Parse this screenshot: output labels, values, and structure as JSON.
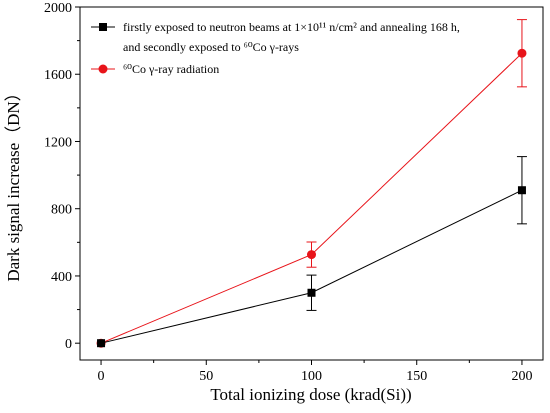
{
  "chart_data": {
    "type": "line",
    "title": "",
    "xlabel": "Total ionizing dose (krad(Si))",
    "ylabel": "Dark signal increase（DN）",
    "xlim": [
      -10,
      210
    ],
    "ylim": [
      -100,
      2000
    ],
    "xticks": [
      0,
      50,
      100,
      150,
      200
    ],
    "yticks": [
      0,
      400,
      800,
      1200,
      1600,
      2000
    ],
    "grid": false,
    "legend_position": "top-left",
    "series": [
      {
        "legend_line1": "firstly exposed to neutron beams at 1×10¹¹ n/cm²  and  annealing 168 h,",
        "legend_line2": "and secondly exposed to ⁶⁰Co γ-rays",
        "color": "#000000",
        "marker": "square",
        "x": [
          0,
          100,
          200
        ],
        "y": [
          0,
          300,
          910
        ],
        "error": [
          0,
          105,
          200
        ]
      },
      {
        "legend_line1": "⁶⁰Co γ-ray radiation",
        "legend_line2": "",
        "color": "#e8141a",
        "marker": "circle",
        "x": [
          0,
          100,
          200
        ],
        "y": [
          0,
          527,
          1725
        ],
        "error": [
          0,
          75,
          200
        ]
      }
    ]
  }
}
